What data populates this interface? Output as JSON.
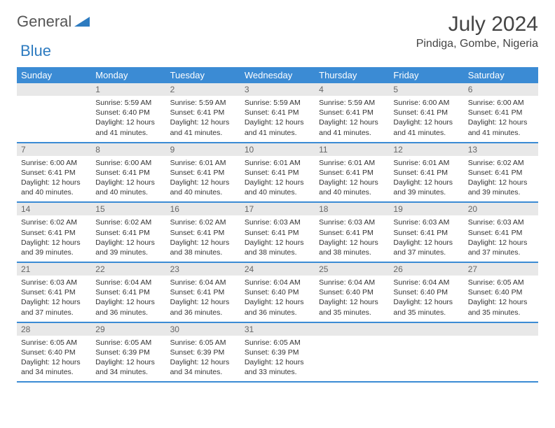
{
  "brand": {
    "part1": "General",
    "part2": "Blue"
  },
  "title": "July 2024",
  "location": "Pindiga, Gombe, Nigeria",
  "dayHeaders": [
    "Sunday",
    "Monday",
    "Tuesday",
    "Wednesday",
    "Thursday",
    "Friday",
    "Saturday"
  ],
  "colors": {
    "header_bg": "#3b8bd4",
    "header_text": "#ffffff",
    "daynum_bg": "#e8e8e8",
    "row_border": "#3b8bd4",
    "body_text": "#333333",
    "title_text": "#444444"
  },
  "fonts": {
    "month_title_pt": 30,
    "location_pt": 16,
    "dayheader_pt": 13,
    "daynum_pt": 12,
    "body_pt": 10.5
  },
  "weeks": [
    [
      {
        "n": "",
        "sr": "",
        "ss": "",
        "dl": ""
      },
      {
        "n": "1",
        "sr": "Sunrise: 5:59 AM",
        "ss": "Sunset: 6:40 PM",
        "dl": "Daylight: 12 hours and 41 minutes."
      },
      {
        "n": "2",
        "sr": "Sunrise: 5:59 AM",
        "ss": "Sunset: 6:41 PM",
        "dl": "Daylight: 12 hours and 41 minutes."
      },
      {
        "n": "3",
        "sr": "Sunrise: 5:59 AM",
        "ss": "Sunset: 6:41 PM",
        "dl": "Daylight: 12 hours and 41 minutes."
      },
      {
        "n": "4",
        "sr": "Sunrise: 5:59 AM",
        "ss": "Sunset: 6:41 PM",
        "dl": "Daylight: 12 hours and 41 minutes."
      },
      {
        "n": "5",
        "sr": "Sunrise: 6:00 AM",
        "ss": "Sunset: 6:41 PM",
        "dl": "Daylight: 12 hours and 41 minutes."
      },
      {
        "n": "6",
        "sr": "Sunrise: 6:00 AM",
        "ss": "Sunset: 6:41 PM",
        "dl": "Daylight: 12 hours and 41 minutes."
      }
    ],
    [
      {
        "n": "7",
        "sr": "Sunrise: 6:00 AM",
        "ss": "Sunset: 6:41 PM",
        "dl": "Daylight: 12 hours and 40 minutes."
      },
      {
        "n": "8",
        "sr": "Sunrise: 6:00 AM",
        "ss": "Sunset: 6:41 PM",
        "dl": "Daylight: 12 hours and 40 minutes."
      },
      {
        "n": "9",
        "sr": "Sunrise: 6:01 AM",
        "ss": "Sunset: 6:41 PM",
        "dl": "Daylight: 12 hours and 40 minutes."
      },
      {
        "n": "10",
        "sr": "Sunrise: 6:01 AM",
        "ss": "Sunset: 6:41 PM",
        "dl": "Daylight: 12 hours and 40 minutes."
      },
      {
        "n": "11",
        "sr": "Sunrise: 6:01 AM",
        "ss": "Sunset: 6:41 PM",
        "dl": "Daylight: 12 hours and 40 minutes."
      },
      {
        "n": "12",
        "sr": "Sunrise: 6:01 AM",
        "ss": "Sunset: 6:41 PM",
        "dl": "Daylight: 12 hours and 39 minutes."
      },
      {
        "n": "13",
        "sr": "Sunrise: 6:02 AM",
        "ss": "Sunset: 6:41 PM",
        "dl": "Daylight: 12 hours and 39 minutes."
      }
    ],
    [
      {
        "n": "14",
        "sr": "Sunrise: 6:02 AM",
        "ss": "Sunset: 6:41 PM",
        "dl": "Daylight: 12 hours and 39 minutes."
      },
      {
        "n": "15",
        "sr": "Sunrise: 6:02 AM",
        "ss": "Sunset: 6:41 PM",
        "dl": "Daylight: 12 hours and 39 minutes."
      },
      {
        "n": "16",
        "sr": "Sunrise: 6:02 AM",
        "ss": "Sunset: 6:41 PM",
        "dl": "Daylight: 12 hours and 38 minutes."
      },
      {
        "n": "17",
        "sr": "Sunrise: 6:03 AM",
        "ss": "Sunset: 6:41 PM",
        "dl": "Daylight: 12 hours and 38 minutes."
      },
      {
        "n": "18",
        "sr": "Sunrise: 6:03 AM",
        "ss": "Sunset: 6:41 PM",
        "dl": "Daylight: 12 hours and 38 minutes."
      },
      {
        "n": "19",
        "sr": "Sunrise: 6:03 AM",
        "ss": "Sunset: 6:41 PM",
        "dl": "Daylight: 12 hours and 37 minutes."
      },
      {
        "n": "20",
        "sr": "Sunrise: 6:03 AM",
        "ss": "Sunset: 6:41 PM",
        "dl": "Daylight: 12 hours and 37 minutes."
      }
    ],
    [
      {
        "n": "21",
        "sr": "Sunrise: 6:03 AM",
        "ss": "Sunset: 6:41 PM",
        "dl": "Daylight: 12 hours and 37 minutes."
      },
      {
        "n": "22",
        "sr": "Sunrise: 6:04 AM",
        "ss": "Sunset: 6:41 PM",
        "dl": "Daylight: 12 hours and 36 minutes."
      },
      {
        "n": "23",
        "sr": "Sunrise: 6:04 AM",
        "ss": "Sunset: 6:41 PM",
        "dl": "Daylight: 12 hours and 36 minutes."
      },
      {
        "n": "24",
        "sr": "Sunrise: 6:04 AM",
        "ss": "Sunset: 6:40 PM",
        "dl": "Daylight: 12 hours and 36 minutes."
      },
      {
        "n": "25",
        "sr": "Sunrise: 6:04 AM",
        "ss": "Sunset: 6:40 PM",
        "dl": "Daylight: 12 hours and 35 minutes."
      },
      {
        "n": "26",
        "sr": "Sunrise: 6:04 AM",
        "ss": "Sunset: 6:40 PM",
        "dl": "Daylight: 12 hours and 35 minutes."
      },
      {
        "n": "27",
        "sr": "Sunrise: 6:05 AM",
        "ss": "Sunset: 6:40 PM",
        "dl": "Daylight: 12 hours and 35 minutes."
      }
    ],
    [
      {
        "n": "28",
        "sr": "Sunrise: 6:05 AM",
        "ss": "Sunset: 6:40 PM",
        "dl": "Daylight: 12 hours and 34 minutes."
      },
      {
        "n": "29",
        "sr": "Sunrise: 6:05 AM",
        "ss": "Sunset: 6:39 PM",
        "dl": "Daylight: 12 hours and 34 minutes."
      },
      {
        "n": "30",
        "sr": "Sunrise: 6:05 AM",
        "ss": "Sunset: 6:39 PM",
        "dl": "Daylight: 12 hours and 34 minutes."
      },
      {
        "n": "31",
        "sr": "Sunrise: 6:05 AM",
        "ss": "Sunset: 6:39 PM",
        "dl": "Daylight: 12 hours and 33 minutes."
      },
      {
        "n": "",
        "sr": "",
        "ss": "",
        "dl": ""
      },
      {
        "n": "",
        "sr": "",
        "ss": "",
        "dl": ""
      },
      {
        "n": "",
        "sr": "",
        "ss": "",
        "dl": ""
      }
    ]
  ]
}
